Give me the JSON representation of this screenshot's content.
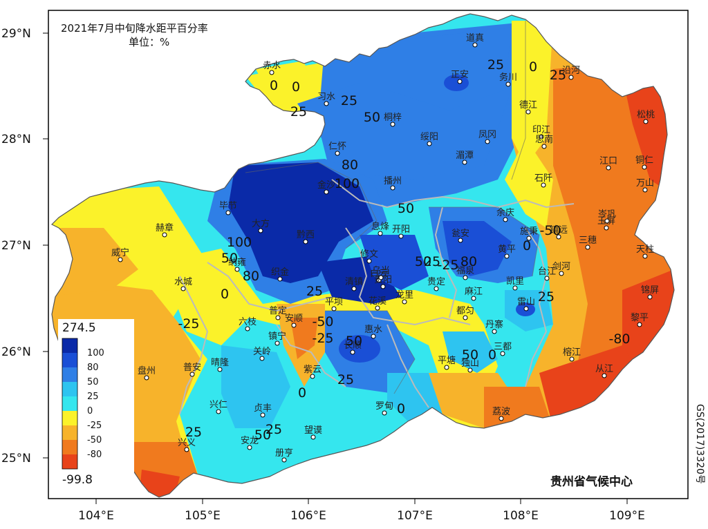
{
  "title": "2021年7月中旬降水距平百分率",
  "unit": "单位：%",
  "organization": "贵州省气候中心",
  "map_code": "GS(2017)3320号",
  "axes": {
    "lat_labels": [
      "29°N",
      "28°N",
      "27°N",
      "26°N",
      "25°N"
    ],
    "lon_labels": [
      "104°E",
      "105°E",
      "106°E",
      "107°E",
      "108°E",
      "109°E"
    ]
  },
  "legend": {
    "max": "274.5",
    "min": "-99.8",
    "levels": [
      {
        "label": "100",
        "color": "#0a2aa8"
      },
      {
        "label": "80",
        "color": "#1a4fd6"
      },
      {
        "label": "50",
        "color": "#2f7fe6"
      },
      {
        "label": "25",
        "color": "#2ec4f0"
      },
      {
        "label": "0",
        "color": "#35e6ee"
      },
      {
        "label": "-25",
        "color": "#fbf22a"
      },
      {
        "label": "-50",
        "color": "#f7b32b"
      },
      {
        "label": "-80",
        "color": "#f07a1e"
      },
      {
        "label": "",
        "color": "#e8431a"
      }
    ]
  },
  "cities": [
    {
      "name": "道真"
    },
    {
      "name": "赤水"
    },
    {
      "name": "习水"
    },
    {
      "name": "正安"
    },
    {
      "name": "务川"
    },
    {
      "name": "沿河"
    },
    {
      "name": "德江"
    },
    {
      "name": "松桃"
    },
    {
      "name": "桐梓"
    },
    {
      "name": "绥阳"
    },
    {
      "name": "凤冈"
    },
    {
      "name": "印江"
    },
    {
      "name": "思南"
    },
    {
      "name": "仁怀"
    },
    {
      "name": "湄潭"
    },
    {
      "name": "江口"
    },
    {
      "name": "铜仁"
    },
    {
      "name": "石阡"
    },
    {
      "name": "万山"
    },
    {
      "name": "播州"
    },
    {
      "name": "毕节"
    },
    {
      "name": "金沙"
    },
    {
      "name": "玉屏"
    },
    {
      "name": "余庆"
    },
    {
      "name": "赫章"
    },
    {
      "name": "大方"
    },
    {
      "name": "黔西"
    },
    {
      "name": "息烽"
    },
    {
      "name": "开阳"
    },
    {
      "name": "瓮安"
    },
    {
      "name": "施秉"
    },
    {
      "name": "镇远"
    },
    {
      "name": "岑巩"
    },
    {
      "name": "三穗"
    },
    {
      "name": "威宁"
    },
    {
      "name": "黄平"
    },
    {
      "name": "天柱"
    },
    {
      "name": "纳雍"
    },
    {
      "name": "修文"
    },
    {
      "name": "织金"
    },
    {
      "name": "福泉"
    },
    {
      "name": "台江"
    },
    {
      "name": "剑河"
    },
    {
      "name": "水城"
    },
    {
      "name": "清镇"
    },
    {
      "name": "白云"
    },
    {
      "name": "贵阳"
    },
    {
      "name": "龙里"
    },
    {
      "name": "贵定"
    },
    {
      "name": "乌当"
    },
    {
      "name": "凯里"
    },
    {
      "name": "锦屏"
    },
    {
      "name": "平坝"
    },
    {
      "name": "花溪"
    },
    {
      "name": "麻江"
    },
    {
      "name": "雷山"
    },
    {
      "name": "普定"
    },
    {
      "name": "六枝"
    },
    {
      "name": "安顺"
    },
    {
      "name": "都匀"
    },
    {
      "name": "丹寨"
    },
    {
      "name": "黎平"
    },
    {
      "name": "镇宁"
    },
    {
      "name": "惠水"
    },
    {
      "name": "关岭"
    },
    {
      "name": "长顺"
    },
    {
      "name": "三都"
    },
    {
      "name": "盘州"
    },
    {
      "name": "普安"
    },
    {
      "name": "晴隆"
    },
    {
      "name": "紫云"
    },
    {
      "name": "平塘"
    },
    {
      "name": "独山"
    },
    {
      "name": "榕江"
    },
    {
      "name": "从江"
    },
    {
      "name": "兴仁"
    },
    {
      "name": "贞丰"
    },
    {
      "name": "罗甸"
    },
    {
      "name": "荔波"
    },
    {
      "name": "望谟"
    },
    {
      "name": "兴义"
    },
    {
      "name": "安龙"
    },
    {
      "name": "册亨"
    }
  ],
  "contour_labels": [
    "0",
    "0",
    "25",
    "25",
    "50",
    "0",
    "25",
    "50",
    "-25",
    "50",
    "80",
    "100",
    "50",
    "100",
    "50",
    "80",
    "0",
    "25",
    "-50",
    "-25",
    "50",
    "25",
    "-25",
    "-50",
    "0",
    "-80",
    "0",
    "50",
    "80",
    "25",
    "0",
    "25",
    "25",
    "25",
    "0",
    "25"
  ]
}
